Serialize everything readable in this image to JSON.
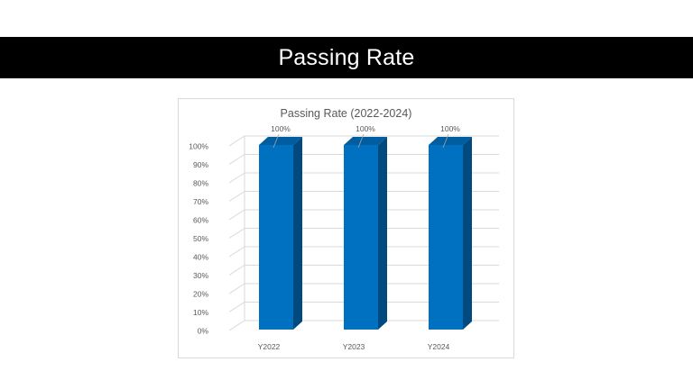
{
  "slide": {
    "title": "Passing Rate"
  },
  "chart_data": {
    "type": "bar",
    "title": "Passing Rate (2022-2024)",
    "categories": [
      "Y2022",
      "Y2023",
      "Y2024"
    ],
    "values": [
      100,
      100,
      100
    ],
    "data_labels": [
      "100%",
      "100%",
      "100%"
    ],
    "y_ticks": [
      "0%",
      "10%",
      "20%",
      "30%",
      "40%",
      "50%",
      "60%",
      "70%",
      "80%",
      "90%",
      "100%"
    ],
    "ylim": [
      0,
      100
    ],
    "grid": true,
    "style": "3d-column",
    "colors": {
      "bar_front": "#0070c0",
      "bar_side": "#004a80",
      "bar_top": "#005da0",
      "grid": "#d9d9d9",
      "text": "#595959"
    }
  }
}
